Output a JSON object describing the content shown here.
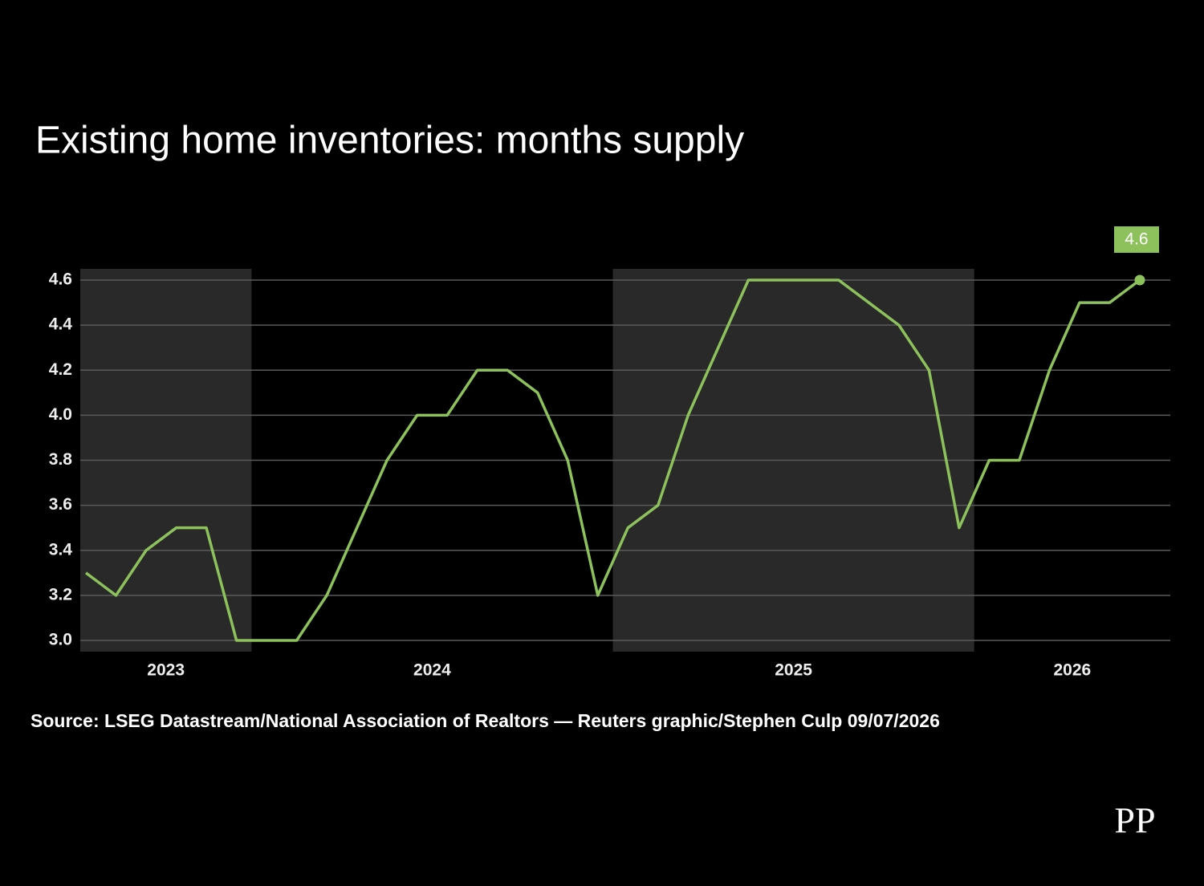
{
  "chart_data": {
    "type": "line",
    "title": "Existing home inventories: months supply",
    "source": "Source: LSEG Datastream/National Association of Realtors  — Reuters graphic/Stephen Culp 09/07/2026",
    "logo": "PP",
    "categories": [
      "2023",
      null,
      null,
      null,
      null,
      null,
      "2024",
      null,
      null,
      null,
      null,
      null,
      null,
      null,
      null,
      null,
      null,
      null,
      "2025",
      null,
      null,
      null,
      null,
      null,
      null,
      null,
      null,
      null,
      null,
      null,
      "2026",
      null,
      null,
      null,
      null,
      null
    ],
    "series": [
      {
        "name": "Months supply",
        "color": "#8dc15b",
        "values": [
          3.3,
          3.2,
          3.4,
          3.5,
          3.5,
          3.0,
          3.0,
          3.0,
          3.2,
          3.5,
          3.8,
          4.0,
          4.0,
          4.2,
          4.2,
          4.1,
          3.8,
          3.2,
          3.5,
          3.6,
          4.0,
          4.3,
          4.6,
          4.6,
          4.6,
          4.6,
          4.5,
          4.4,
          4.2,
          3.5,
          3.8,
          3.8,
          4.2,
          4.5,
          4.5,
          4.6
        ]
      }
    ],
    "ylim": [
      2.95,
      4.65
    ],
    "yticks": [
      {
        "value": 3,
        "label": "3.0"
      },
      3.2,
      3.4,
      3.6,
      3.8,
      {
        "value": 4,
        "label": "4.0"
      },
      4.2,
      4.4,
      4.6
    ],
    "grid": true
  }
}
